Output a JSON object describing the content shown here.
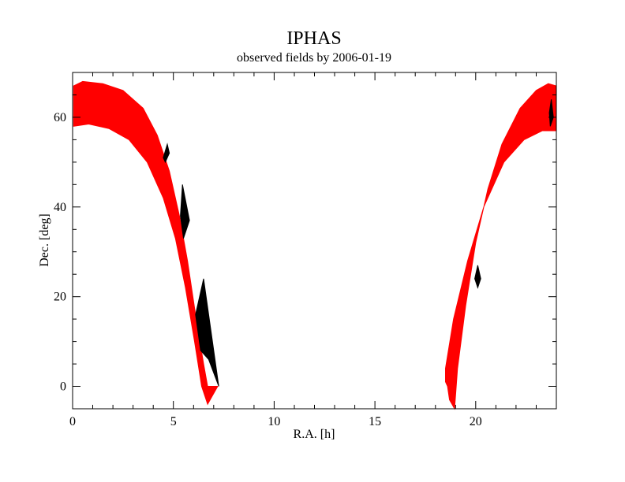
{
  "chart_data": {
    "type": "area",
    "title": "IPHAS",
    "subtitle": "observed fields by 2006-01-19",
    "xlabel": "R.A. [h]",
    "ylabel": "Dec. [deg]",
    "xlim": [
      0,
      24
    ],
    "ylim": [
      -5,
      70
    ],
    "x_ticks": [
      0,
      5,
      10,
      15,
      20
    ],
    "y_ticks": [
      0,
      20,
      40,
      60
    ],
    "grid": false,
    "colors": {
      "observed": "#ff0000",
      "background_fields": "#000000",
      "frame": "#000000"
    },
    "series": [
      {
        "color": "#ff0000",
        "polygon": [
          [
            0.05,
            67
          ],
          [
            0.5,
            68
          ],
          [
            1.5,
            67.5
          ],
          [
            2.5,
            66
          ],
          [
            3.5,
            62
          ],
          [
            4.2,
            56
          ],
          [
            4.8,
            48
          ],
          [
            5.3,
            38
          ],
          [
            5.7,
            28
          ],
          [
            6.1,
            16
          ],
          [
            6.5,
            5
          ],
          [
            6.7,
            0
          ],
          [
            7.2,
            0
          ],
          [
            6.95,
            -2
          ],
          [
            6.7,
            -4
          ],
          [
            6.4,
            0
          ],
          [
            6.05,
            10
          ],
          [
            5.6,
            22
          ],
          [
            5.1,
            33
          ],
          [
            4.5,
            42
          ],
          [
            3.7,
            50
          ],
          [
            2.8,
            55
          ],
          [
            1.8,
            57.5
          ],
          [
            0.8,
            58.5
          ],
          [
            0.05,
            58
          ]
        ]
      },
      {
        "color": "#000000",
        "polygon": [
          [
            4.7,
            54
          ],
          [
            4.8,
            52
          ],
          [
            4.6,
            50
          ],
          [
            4.5,
            51
          ]
        ]
      },
      {
        "color": "#000000",
        "polygon": [
          [
            5.45,
            45
          ],
          [
            5.8,
            37
          ],
          [
            5.5,
            33
          ],
          [
            5.35,
            38
          ]
        ]
      },
      {
        "color": "#000000",
        "polygon": [
          [
            6.5,
            24
          ],
          [
            7.25,
            0
          ],
          [
            6.75,
            6
          ],
          [
            6.35,
            8
          ],
          [
            6.1,
            16
          ]
        ]
      },
      {
        "color": "#ff0000",
        "polygon": [
          [
            24,
            67
          ],
          [
            23.6,
            67.5
          ],
          [
            23,
            66
          ],
          [
            22.2,
            62
          ],
          [
            21.3,
            54
          ],
          [
            20.6,
            44
          ],
          [
            20,
            32
          ],
          [
            19.5,
            18
          ],
          [
            19.1,
            4
          ],
          [
            19,
            -2
          ],
          [
            18.95,
            -5
          ],
          [
            18.7,
            -3
          ],
          [
            18.6,
            0
          ],
          [
            18.5,
            1
          ],
          [
            18.5,
            4
          ],
          [
            18.9,
            15
          ],
          [
            19.6,
            28
          ],
          [
            20.4,
            40
          ],
          [
            21.4,
            50
          ],
          [
            22.4,
            55
          ],
          [
            23.3,
            57
          ],
          [
            24,
            57
          ]
        ]
      },
      {
        "color": "#000000",
        "polygon": [
          [
            23.75,
            64
          ],
          [
            23.85,
            60
          ],
          [
            23.7,
            58
          ],
          [
            23.65,
            61
          ]
        ]
      },
      {
        "color": "#000000",
        "polygon": [
          [
            20.1,
            27
          ],
          [
            20.25,
            24
          ],
          [
            20.1,
            22
          ],
          [
            19.95,
            24
          ]
        ]
      }
    ]
  }
}
